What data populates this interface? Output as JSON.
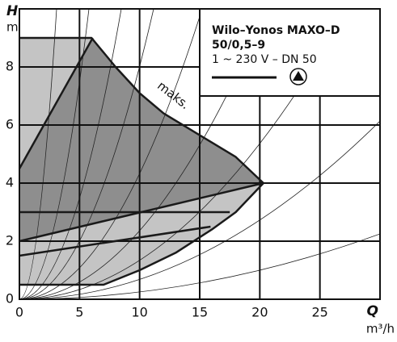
{
  "chart_data": {
    "type": "line",
    "title": "Wilo–Yonos MAXO–D",
    "subtitle": "50/0,5–9",
    "caption": "1 ~ 230 V – DN 50",
    "x_label": "Q",
    "x_unit": "m³/h",
    "y_label": "H",
    "y_unit": "m",
    "xlim": [
      0,
      30
    ],
    "ylim": [
      0,
      10
    ],
    "xticks": [
      0,
      5,
      10,
      15,
      20,
      25
    ],
    "yticks": [
      0,
      2,
      4,
      6,
      8
    ],
    "grid": true,
    "series": [
      {
        "name": "maks.",
        "color": "#1a1a1a",
        "x": [
          0,
          6,
          8,
          10,
          12,
          14,
          16,
          18,
          20.3
        ],
        "values": [
          9,
          9,
          8,
          7.1,
          6.4,
          5.9,
          5.4,
          4.9,
          4
        ]
      },
      {
        "color": "#1a1a1a",
        "x": [
          0,
          7,
          10,
          13,
          16,
          18,
          20.3
        ],
        "values": [
          0.5,
          0.5,
          1,
          1.6,
          2.4,
          3,
          4
        ]
      },
      {
        "color": "#1a1a1a",
        "x": [
          0,
          17.5
        ],
        "values": [
          3,
          3
        ]
      },
      {
        "color": "#1a1a1a",
        "x": [
          0,
          15.9
        ],
        "values": [
          1.5,
          2.5
        ]
      },
      {
        "color": "#1a1a1a",
        "x": [
          0,
          20.3
        ],
        "values": [
          2,
          4
        ]
      },
      {
        "color": "#1a1a1a",
        "x": [
          0,
          6.1
        ],
        "values": [
          4.5,
          9
        ]
      }
    ]
  }
}
